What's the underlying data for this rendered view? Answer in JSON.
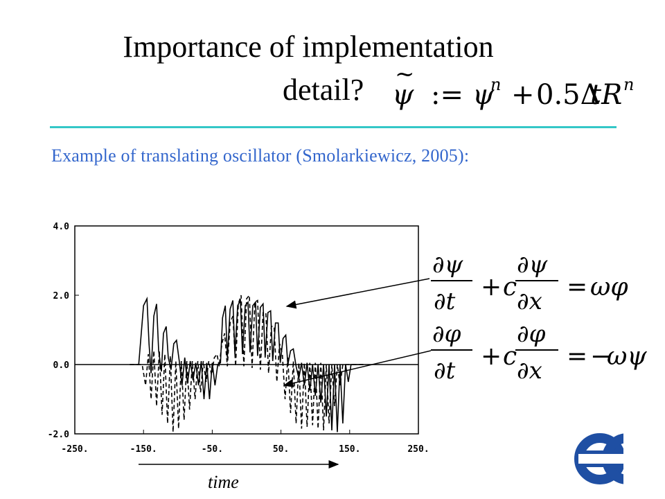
{
  "slide": {
    "title_line1": "Importance of implementation",
    "title_line2": "detail?",
    "title_formula": "ψ̃ := ψⁿ + 0.5ΔtRⁿ",
    "subtitle": "Example of translating oscillator (Smolarkiewicz, 2005):",
    "equation1": "∂ψ/∂t + c ∂ψ/∂x = ωφ",
    "equation2": "∂φ/∂t + c ∂φ/∂x = −ωψ",
    "time_label": "time",
    "logo_icon": "ecmwf-logo",
    "divider_color": "#33c7c7",
    "subtitle_color": "#3366cc",
    "logo_color": "#1f4fa3"
  },
  "chart_data": {
    "type": "line",
    "xlim": [
      -250,
      250
    ],
    "ylim": [
      -2,
      4
    ],
    "x_ticks": [
      "-250.",
      "-150.",
      "-50.",
      "50.",
      "150.",
      "250."
    ],
    "x_tick_values": [
      -250,
      -150,
      -50,
      50,
      150,
      250
    ],
    "y_ticks": [
      "4.0",
      "2.0",
      "0.0",
      "-2.0"
    ],
    "y_tick_values": [
      4,
      2,
      0,
      -2
    ],
    "grid": false,
    "xlabel": "time",
    "series": [
      {
        "style": "solid",
        "points": [
          [
            -170,
            0
          ],
          [
            -157,
            0
          ],
          [
            -150,
            1.7
          ],
          [
            -145,
            1.9
          ],
          [
            -142,
            0.6
          ],
          [
            -139,
            -0.25
          ],
          [
            -135,
            1.4
          ],
          [
            -131,
            1.75
          ],
          [
            -128,
            0.4
          ],
          [
            -124,
            -0.2
          ],
          [
            -121,
            0.9
          ],
          [
            -117,
            1.1
          ],
          [
            -114,
            0.2
          ],
          [
            -110,
            -0.15
          ],
          [
            -106,
            0.6
          ],
          [
            -102,
            0.7
          ],
          [
            -98,
            0.1
          ],
          [
            -94,
            -0.6
          ],
          [
            -90,
            0.2
          ],
          [
            -86,
            -0.55
          ],
          [
            -82,
            0.1
          ],
          [
            -78,
            -0.45
          ],
          [
            -74,
            0.05
          ],
          [
            -70,
            -0.6
          ],
          [
            -66,
            0.1
          ],
          [
            -62,
            -1.0
          ],
          [
            -58,
            0.05
          ],
          [
            -54,
            -1.0
          ],
          [
            -50,
            0.05
          ],
          [
            -46,
            -0.6
          ],
          [
            -42,
            0.0
          ],
          [
            -38,
            0.05
          ],
          [
            -35,
            1.35
          ],
          [
            -31,
            1.7
          ],
          [
            -28,
            0.2
          ],
          [
            -24,
            1.6
          ],
          [
            -20,
            1.85
          ],
          [
            -17,
            0.3
          ],
          [
            -13,
            1.7
          ],
          [
            -9,
            1.85
          ],
          [
            -6,
            0.3
          ],
          [
            -2,
            1.7
          ],
          [
            2,
            1.8
          ],
          [
            5,
            0.35
          ],
          [
            9,
            1.7
          ],
          [
            13,
            1.8
          ],
          [
            16,
            0.25
          ],
          [
            20,
            1.65
          ],
          [
            24,
            1.75
          ],
          [
            27,
            0.2
          ],
          [
            31,
            1.5
          ],
          [
            35,
            1.55
          ],
          [
            38,
            0.1
          ],
          [
            42,
            1.2
          ],
          [
            46,
            1.2
          ],
          [
            49,
            0.05
          ],
          [
            53,
            0.75
          ],
          [
            57,
            0.85
          ],
          [
            60,
            0.0
          ],
          [
            64,
            0.4
          ],
          [
            68,
            0.45
          ],
          [
            72,
            -0.05
          ],
          [
            76,
            -0.4
          ],
          [
            80,
            0.05
          ],
          [
            84,
            -0.6
          ],
          [
            88,
            0.05
          ],
          [
            92,
            -0.75
          ],
          [
            96,
            0.0
          ],
          [
            100,
            -0.9
          ],
          [
            104,
            0.0
          ],
          [
            108,
            -1.1
          ],
          [
            112,
            0.0
          ],
          [
            116,
            -1.5
          ],
          [
            120,
            0.0
          ],
          [
            124,
            -1.9
          ],
          [
            128,
            0.0
          ],
          [
            132,
            -1.95
          ],
          [
            136,
            0.0
          ],
          [
            140,
            -1.7
          ],
          [
            144,
            0.0
          ],
          [
            148,
            -0.5
          ],
          [
            152,
            0.0
          ],
          [
            170,
            0.0
          ]
        ]
      },
      {
        "style": "dashed",
        "points": [
          [
            -170,
            0
          ],
          [
            -152,
            0
          ],
          [
            -147,
            -0.6
          ],
          [
            -143,
            0.3
          ],
          [
            -139,
            -1.0
          ],
          [
            -135,
            0.4
          ],
          [
            -131,
            -1.2
          ],
          [
            -127,
            0.4
          ],
          [
            -123,
            -1.45
          ],
          [
            -119,
            0.3
          ],
          [
            -115,
            -1.7
          ],
          [
            -111,
            0.25
          ],
          [
            -107,
            -1.95
          ],
          [
            -103,
            0.1
          ],
          [
            -99,
            -1.85
          ],
          [
            -95,
            0.1
          ],
          [
            -91,
            -1.6
          ],
          [
            -87,
            0.1
          ],
          [
            -83,
            -1.3
          ],
          [
            -79,
            0.1
          ],
          [
            -75,
            -1.0
          ],
          [
            -71,
            0.1
          ],
          [
            -67,
            -0.8
          ],
          [
            -63,
            0.1
          ],
          [
            -59,
            -0.5
          ],
          [
            -55,
            0.1
          ],
          [
            -51,
            -0.3
          ],
          [
            -47,
            0.2
          ],
          [
            -43,
            0.3
          ],
          [
            -40,
            -0.05
          ],
          [
            -36,
            0.6
          ],
          [
            -32,
            0.9
          ],
          [
            -28,
            -0.05
          ],
          [
            -24,
            1.2
          ],
          [
            -20,
            1.4
          ],
          [
            -16,
            -0.05
          ],
          [
            -12,
            1.75
          ],
          [
            -8,
            2.0
          ],
          [
            -4,
            -0.05
          ],
          [
            0,
            1.9
          ],
          [
            4,
            2.0
          ],
          [
            8,
            -0.1
          ],
          [
            12,
            1.8
          ],
          [
            16,
            1.85
          ],
          [
            20,
            -0.15
          ],
          [
            24,
            1.5
          ],
          [
            28,
            1.5
          ],
          [
            32,
            -0.25
          ],
          [
            36,
            1.1
          ],
          [
            40,
            1.1
          ],
          [
            44,
            -0.5
          ],
          [
            48,
            0.6
          ],
          [
            52,
            0.3
          ],
          [
            56,
            -1.0
          ],
          [
            60,
            0.2
          ],
          [
            64,
            -1.4
          ],
          [
            68,
            0.1
          ],
          [
            72,
            -1.7
          ],
          [
            76,
            0.05
          ],
          [
            80,
            -1.85
          ],
          [
            84,
            0.05
          ],
          [
            88,
            -1.8
          ],
          [
            92,
            0.05
          ],
          [
            96,
            -1.75
          ],
          [
            100,
            0.05
          ],
          [
            104,
            -1.85
          ],
          [
            108,
            0.05
          ],
          [
            112,
            -1.9
          ],
          [
            116,
            0.0
          ],
          [
            120,
            -1.7
          ],
          [
            124,
            0.0
          ],
          [
            128,
            -1.2
          ],
          [
            132,
            0.0
          ],
          [
            136,
            -0.6
          ],
          [
            140,
            0.0
          ],
          [
            170,
            0.0
          ]
        ]
      }
    ]
  }
}
